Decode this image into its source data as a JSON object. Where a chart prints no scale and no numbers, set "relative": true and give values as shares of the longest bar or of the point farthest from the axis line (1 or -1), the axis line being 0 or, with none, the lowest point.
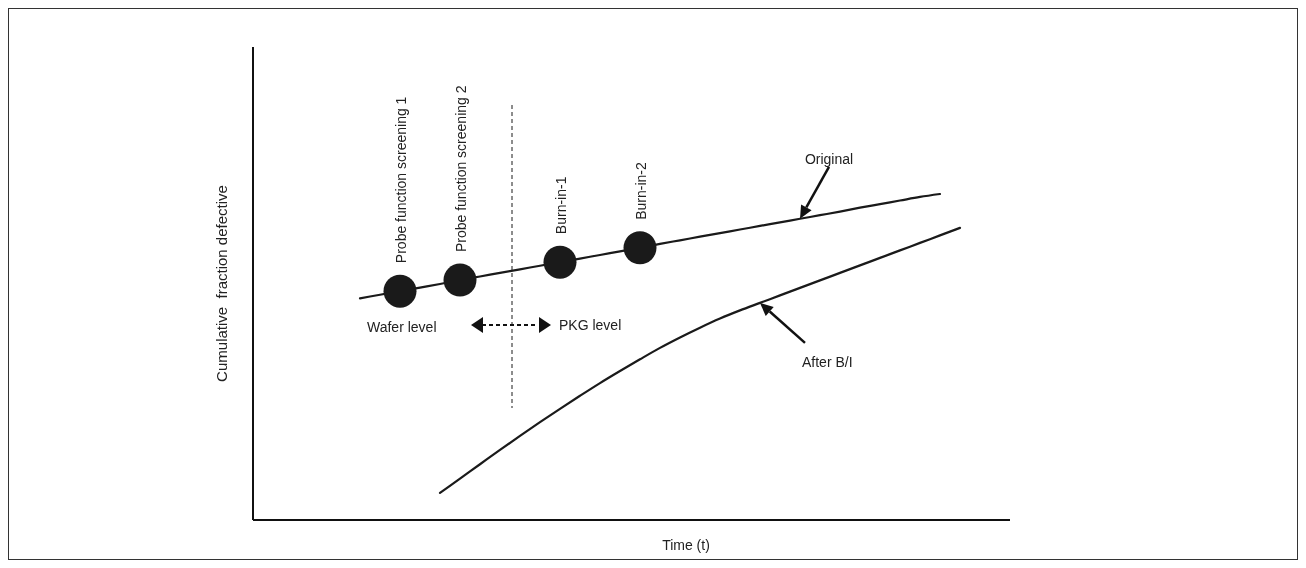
{
  "chart_data": {
    "type": "line",
    "relative": true,
    "xlabel": "Time (t)",
    "ylabel": "Cumulative  fraction defective",
    "tick_labels": false,
    "line_style": "solid",
    "categories": [
      null,
      null,
      null,
      null,
      null,
      null,
      null,
      null,
      null,
      null,
      null,
      null,
      null,
      null,
      null,
      null,
      null,
      null,
      null,
      null,
      null,
      null,
      null,
      null,
      null,
      null,
      null,
      null,
      null,
      null,
      null,
      null,
      null,
      null,
      null,
      null,
      null,
      null
    ],
    "series": [
      {
        "color": "#1a1a1a",
        "marker": "none",
        "values": [
          null,
          null,
          null,
          null,
          null,
          0.68,
          0.691,
          0.702,
          0.713,
          0.724,
          0.736,
          0.747,
          0.758,
          0.769,
          0.78,
          0.791,
          0.802,
          0.813,
          0.824,
          0.835,
          0.847,
          0.858,
          0.869,
          0.88,
          0.891,
          0.902,
          0.913,
          0.924,
          0.935,
          0.946,
          0.958,
          0.969,
          0.98,
          0.991,
          1.0,
          null,
          null,
          null
        ]
      },
      {
        "color": "#1a1a1a",
        "marker": "none",
        "values": [
          null,
          null,
          null,
          null,
          null,
          null,
          null,
          null,
          null,
          0.083,
          0.127,
          0.171,
          0.215,
          0.258,
          0.3,
          0.341,
          0.381,
          0.42,
          0.457,
          0.493,
          0.528,
          0.56,
          0.59,
          0.618,
          0.643,
          0.666,
          0.689,
          0.712,
          0.735,
          0.758,
          0.781,
          0.804,
          0.827,
          0.85,
          0.873,
          0.896,
          null,
          null
        ]
      },
      {
        "color": "#1a1a1a",
        "marker": "circle",
        "values": [
          null,
          null,
          null,
          null,
          null,
          null,
          null,
          0.702,
          null,
          null,
          0.736,
          null,
          null,
          null,
          null,
          0.791,
          null,
          null,
          null,
          0.835,
          null,
          null,
          null,
          null,
          null,
          null,
          null,
          null,
          null,
          null,
          null,
          null,
          null,
          null,
          null,
          null,
          null,
          null
        ]
      }
    ],
    "annotations": [
      "Probe function screening 1",
      "Probe function screening 2",
      "Burn-in-1",
      "Burn-in-2",
      "Original",
      "After B/I",
      "Wafer level",
      "PKG level"
    ]
  }
}
